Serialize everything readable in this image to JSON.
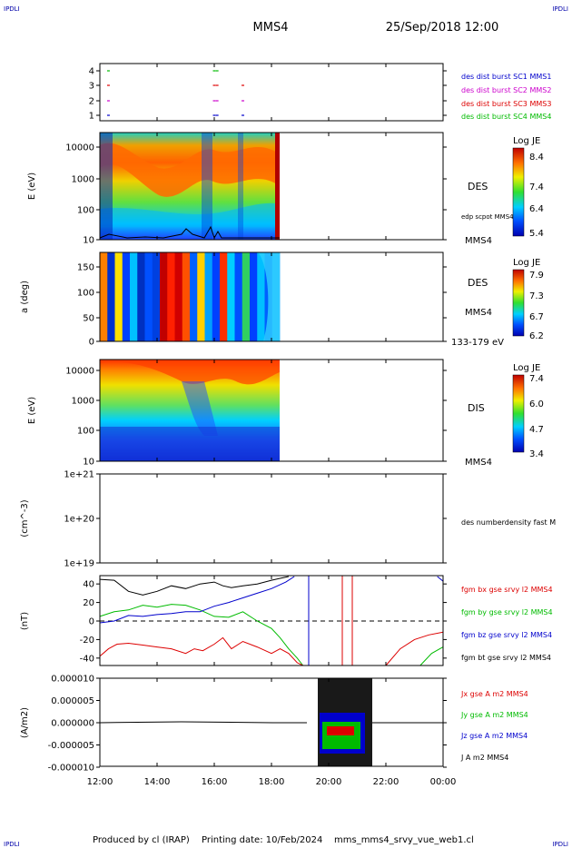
{
  "corner_left": "IPDLI",
  "corner_right": "IPDLI",
  "header": {
    "spacecraft": "MMS4",
    "datetime": "25/Sep/2018 12:00"
  },
  "footer": {
    "produced": "Produced by cl (IRAP)",
    "printing": "Printing date: 10/Feb/2024",
    "file": "mms_mms4_srvy_vue_web1.cl",
    "corner_left": "IPDLI",
    "corner_right": "IPDLI"
  },
  "colors": {
    "blue": "#0000cc",
    "magenta": "#cc00cc",
    "red": "#dd0000",
    "green": "#00bb00",
    "black": "#000000"
  },
  "chart_data": [
    {
      "type": "scatter",
      "panel": "burst-availability",
      "x_ticks": [
        "12:00",
        "14:00",
        "16:00",
        "18:00",
        "20:00",
        "22:00",
        "00:00"
      ],
      "y_ticks": [
        "1",
        "2",
        "3",
        "4"
      ],
      "legend": [
        {
          "name": "des dist burst SC1 MMS1",
          "color": "#0000cc"
        },
        {
          "name": "des dist burst SC2 MMS2",
          "color": "#cc00cc"
        },
        {
          "name": "des dist burst SC3 MMS3",
          "color": "#dd0000"
        },
        {
          "name": "des dist burst SC4 MMS4",
          "color": "#00bb00"
        }
      ],
      "series": [
        {
          "name": "des dist burst SC1 MMS1",
          "y": 1,
          "x_hours": [
            12.3,
            16.0,
            16.1,
            17.0
          ]
        },
        {
          "name": "des dist burst SC2 MMS2",
          "y": 2,
          "x_hours": [
            12.3,
            16.0,
            16.1,
            17.0
          ]
        },
        {
          "name": "des dist burst SC3 MMS3",
          "y": 3,
          "x_hours": [
            12.3,
            16.0,
            16.1,
            17.0
          ]
        },
        {
          "name": "des dist burst SC4 MMS4",
          "y": 4,
          "x_hours": [
            12.3,
            16.0,
            16.1
          ]
        }
      ]
    },
    {
      "type": "heatmap",
      "panel": "des-energy-spectrogram",
      "ylabel": "E (eV)",
      "y_ticks": [
        "10",
        "100",
        "1000",
        "10000"
      ],
      "label": "DES",
      "label_sub": "MMS4",
      "overlay": "edp scpot MMS4",
      "colorbar": {
        "title": "Log JE",
        "ticks": [
          "8.4",
          "7.4",
          "6.4",
          "5.4"
        ]
      },
      "data_end_hour": 18.3
    },
    {
      "type": "heatmap",
      "panel": "des-pitch-angle",
      "ylabel": "a (deg)",
      "y_ticks": [
        "0",
        "50",
        "100",
        "150"
      ],
      "label": "DES",
      "label_sub": "MMS4",
      "energy_range": "133-179 eV",
      "colorbar": {
        "title": "Log JE",
        "ticks": [
          "7.9",
          "7.3",
          "6.7",
          "6.2"
        ]
      },
      "data_end_hour": 18.3
    },
    {
      "type": "heatmap",
      "panel": "dis-energy-spectrogram",
      "ylabel": "E (eV)",
      "y_ticks": [
        "10",
        "100",
        "1000",
        "10000"
      ],
      "label": "DIS",
      "label_sub": "MMS4",
      "colorbar": {
        "title": "Log JE",
        "ticks": [
          "7.4",
          "6.0",
          "4.7",
          "3.4"
        ]
      },
      "data_end_hour": 18.3
    },
    {
      "type": "line",
      "panel": "density",
      "ylabel": "(cm^-3)",
      "y_ticks": [
        "1e+19",
        "1e+20",
        "1e+21"
      ],
      "legend": [
        {
          "name": "des numberdensity fast M",
          "color": "#000000"
        }
      ]
    },
    {
      "type": "line",
      "panel": "fgm-field",
      "ylabel": "(nT)",
      "y_ticks": [
        "40",
        "20",
        "0",
        "-20",
        "-40"
      ],
      "ylim": [
        -48,
        48
      ],
      "legend": [
        {
          "name": "fgm bx gse srvy l2 MMS4",
          "color": "#dd0000"
        },
        {
          "name": "fgm by gse srvy l2 MMS4",
          "color": "#00bb00"
        },
        {
          "name": "fgm bz gse srvy l2 MMS4",
          "color": "#0000cc"
        },
        {
          "name": "fgm bt gse srvy l2 MMS4",
          "color": "#000000"
        }
      ],
      "series": [
        {
          "name": "fgm bt gse srvy l2 MMS4",
          "color": "#000000",
          "x": [
            12.0,
            12.5,
            13.0,
            13.5,
            14.0,
            14.5,
            15.0,
            15.5,
            16.0,
            16.3,
            16.6,
            17.0,
            17.5,
            18.0,
            18.3,
            18.6
          ],
          "y": [
            45,
            44,
            32,
            28,
            32,
            38,
            35,
            40,
            42,
            38,
            36,
            38,
            40,
            44,
            46,
            48
          ]
        },
        {
          "name": "fgm by gse srvy l2 MMS4",
          "color": "#00bb00",
          "x": [
            12.0,
            12.5,
            13.0,
            13.5,
            14.0,
            14.5,
            15.0,
            15.5,
            16.0,
            16.5,
            17.0,
            17.5,
            18.0,
            18.3,
            18.6,
            18.9,
            19.1
          ],
          "y": [
            5,
            10,
            12,
            17,
            15,
            18,
            17,
            12,
            5,
            4,
            10,
            0,
            -8,
            -18,
            -30,
            -40,
            -48
          ]
        },
        {
          "name": "fgm bz gse srvy l2 MMS4",
          "color": "#0000cc",
          "x": [
            12.0,
            12.5,
            13.0,
            13.5,
            14.0,
            14.5,
            15.0,
            15.5,
            16.0,
            16.5,
            17.0,
            17.5,
            18.0,
            18.5,
            18.8
          ],
          "y": [
            -2,
            0,
            6,
            5,
            7,
            8,
            10,
            10,
            16,
            20,
            25,
            30,
            35,
            42,
            48
          ]
        },
        {
          "name": "fgm bx gse srvy l2 MMS4",
          "color": "#dd0000",
          "x": [
            12.0,
            12.3,
            12.6,
            13.0,
            13.5,
            14.0,
            14.5,
            15.0,
            15.3,
            15.6,
            16.0,
            16.3,
            16.6,
            17.0,
            17.5,
            18.0,
            18.3,
            18.6,
            18.9,
            19.1
          ],
          "y": [
            -38,
            -30,
            -25,
            -24,
            -26,
            -28,
            -30,
            -35,
            -30,
            -32,
            -25,
            -18,
            -30,
            -22,
            -28,
            -35,
            -30,
            -35,
            -45,
            -48
          ]
        },
        {
          "name": "fgm bx gse srvy l2 MMS4 (recovery)",
          "color": "#dd0000",
          "x": [
            22.0,
            22.5,
            23.0,
            23.5,
            24.0
          ],
          "y": [
            -48,
            -30,
            -20,
            -15,
            -12
          ]
        },
        {
          "name": "fgm by gse srvy l2 MMS4 (recovery)",
          "color": "#00bb00",
          "x": [
            23.2,
            23.6,
            24.0
          ],
          "y": [
            -48,
            -35,
            -28
          ]
        },
        {
          "name": "fgm bz gse srvy l2 MMS4 (recovery)",
          "color": "#0000cc",
          "x": [
            23.8,
            24.0
          ],
          "y": [
            48,
            43
          ]
        }
      ]
    },
    {
      "type": "line",
      "panel": "current-density",
      "ylabel": "(A/m2)",
      "y_ticks": [
        "0.000010",
        "0.000005",
        "0.000000",
        "-0.000005",
        "-0.000010"
      ],
      "ylim": [
        -1e-05,
        1e-05
      ],
      "x_ticks": [
        "12:00",
        "14:00",
        "16:00",
        "18:00",
        "20:00",
        "22:00",
        "00:00"
      ],
      "legend": [
        {
          "name": "Jx gse A m2 MMS4",
          "color": "#dd0000"
        },
        {
          "name": "Jy gse A m2 MMS4",
          "color": "#00bb00"
        },
        {
          "name": "Jz gse A m2 MMS4",
          "color": "#0000cc"
        },
        {
          "name": "J A m2 MMS4",
          "color": "#000000"
        }
      ]
    }
  ]
}
